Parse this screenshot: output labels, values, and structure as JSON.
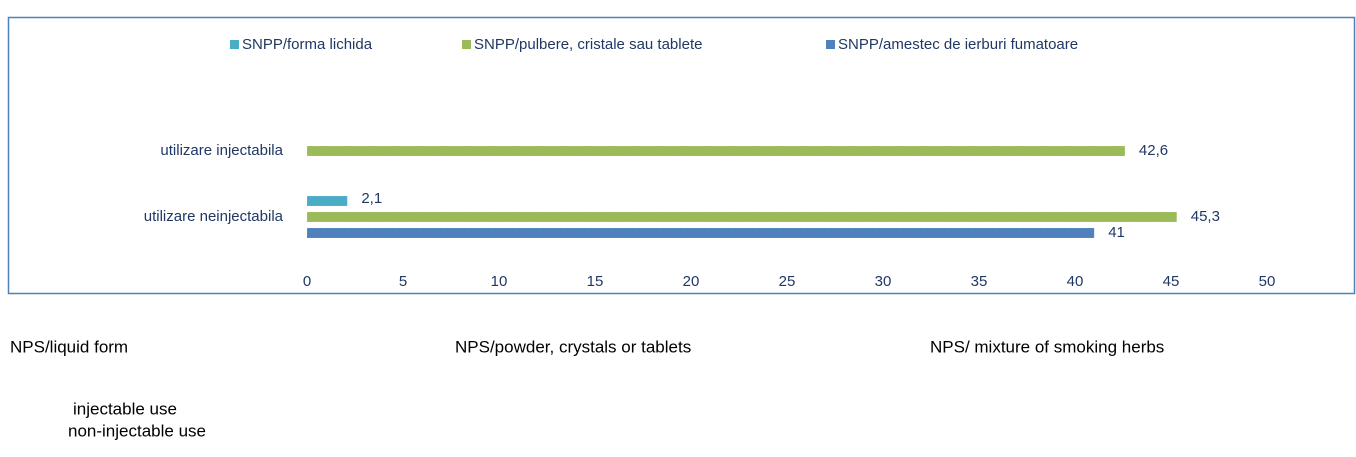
{
  "chart_data": {
    "type": "barh",
    "categories": [
      "utilizare injectabila",
      "utilizare neinjectabila"
    ],
    "series": [
      {
        "name": "SNPP/forma lichida",
        "color": "#4bacc6",
        "values": [
          null,
          2.1
        ],
        "value_labels": [
          null,
          "2,1"
        ]
      },
      {
        "name": "SNPP/pulbere, cristale sau tablete",
        "color": "#9bbb59",
        "values": [
          42.6,
          45.3
        ],
        "value_labels": [
          "42,6",
          "45,3"
        ]
      },
      {
        "name": "SNPP/amestec de ierburi fumatoare",
        "color": "#4f81bd",
        "values": [
          null,
          41
        ],
        "value_labels": [
          null,
          "41"
        ]
      }
    ],
    "xlim": [
      0,
      50
    ],
    "xticks": [
      0,
      5,
      10,
      15,
      20,
      25,
      30,
      35,
      40,
      45,
      50
    ],
    "legend": "top"
  },
  "translations": {
    "legend": [
      "NPS/liquid form",
      "NPS/powder, crystals or tablets",
      "NPS/ mixture of smoking herbs"
    ],
    "categories": [
      "injectable use",
      "non-injectable use"
    ]
  }
}
